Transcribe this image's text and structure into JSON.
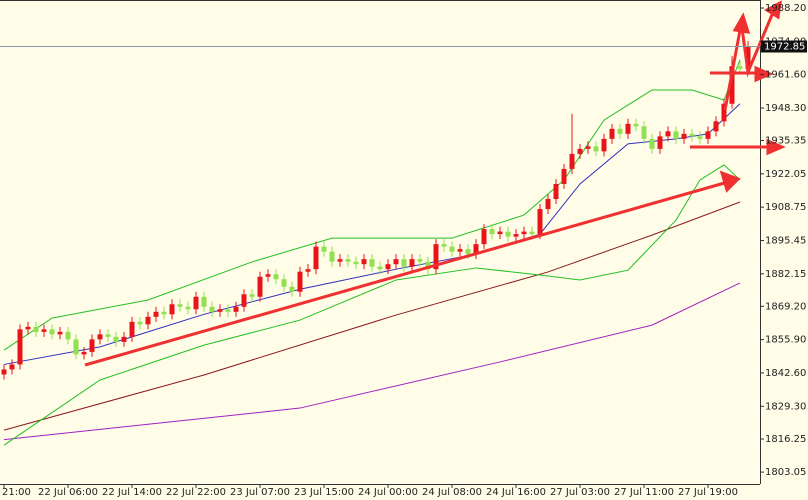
{
  "chart_data": {
    "type": "candlestick",
    "ylim": [
      1798.3,
      1991.4
    ],
    "yticks": [
      1803.05,
      1816.25,
      {
        "value": 1829.3,
        "label": "1829.30"
      },
      {
        "value": 1842.6,
        "label": "1842.60"
      },
      {
        "value": 1855.9,
        "label": "1855.90"
      },
      {
        "value": 1869.2,
        "label": "1869.20"
      },
      1882.15,
      1895.45,
      1908.75,
      1922.05,
      1935.35,
      {
        "value": 1948.3,
        "label": "1948.30"
      },
      {
        "value": 1961.6,
        "label": "1961.60"
      },
      {
        "value": 1974.9,
        "label": "1974.90"
      },
      {
        "value": 1988.2,
        "label": "1988.20"
      }
    ],
    "xticks": [
      {
        "value": 0,
        "label": "21:00"
      },
      {
        "value": 8,
        "label": "22 Jul 06:00"
      },
      {
        "value": 16,
        "label": "22 Jul 14:00"
      },
      {
        "value": 24,
        "label": "22 Jul 22:00"
      },
      {
        "value": 32,
        "label": "23 Jul 07:00"
      },
      {
        "value": 40,
        "label": "23 Jul 15:00"
      },
      {
        "value": 48,
        "label": "24 Jul 00:00"
      },
      {
        "value": 56,
        "label": "24 Jul 08:00"
      },
      {
        "value": 64,
        "label": "24 Jul 16:00"
      },
      {
        "value": 72,
        "label": "27 Jul 03:00"
      },
      {
        "value": 80,
        "label": "27 Jul 11:00"
      },
      {
        "value": 88,
        "label": "27 Jul 19:00"
      }
    ],
    "current_price": 1972.85,
    "up_color": "#e8141a",
    "down_color": "#90e050",
    "open": [
      1842,
      1844,
      1846,
      1860,
      1861,
      1859,
      1860,
      1858,
      1859,
      1856,
      1850,
      1851,
      1856,
      1858,
      1857,
      1855,
      1857,
      1863,
      1862,
      1865,
      1867,
      1866,
      1870,
      1869,
      1868,
      1873,
      1869,
      1867,
      1868,
      1867,
      1869,
      1874,
      1873,
      1881,
      1882,
      1880,
      1877,
      1875,
      1883,
      1884,
      1893,
      1891,
      1887,
      1888,
      1887,
      1886,
      1888,
      1885,
      1884,
      1886,
      1888,
      1885,
      1888,
      1887,
      1884,
      1894,
      1893,
      1891,
      1892,
      1890,
      1894,
      1900,
      1898,
      1899,
      1897,
      1898,
      1899,
      1898,
      1908,
      1912,
      1918,
      1924,
      1930,
      1932,
      1933,
      1931,
      1936,
      1940,
      1938,
      1942,
      1941,
      1936,
      1932,
      1937,
      1939,
      1936,
      1938,
      1937,
      1936,
      1939,
      1943,
      1950,
      1965,
      1964
    ],
    "high": [
      1846,
      1848,
      1862,
      1863,
      1863,
      1862,
      1862,
      1861,
      1861,
      1858,
      1853,
      1858,
      1860,
      1860,
      1859,
      1859,
      1865,
      1865,
      1867,
      1869,
      1869,
      1872,
      1872,
      1871,
      1875,
      1875,
      1871,
      1870,
      1870,
      1871,
      1876,
      1876,
      1883,
      1884,
      1884,
      1882,
      1879,
      1885,
      1886,
      1895,
      1895,
      1893,
      1890,
      1890,
      1889,
      1890,
      1890,
      1887,
      1888,
      1890,
      1890,
      1890,
      1890,
      1889,
      1896,
      1896,
      1895,
      1894,
      1894,
      1896,
      1902,
      1902,
      1901,
      1901,
      1900,
      1901,
      1901,
      1910,
      1914,
      1920,
      1926,
      1946,
      1934,
      1935,
      1935,
      1938,
      1942,
      1942,
      1944,
      1944,
      1943,
      1938,
      1939,
      1941,
      1941,
      1940,
      1940,
      1939,
      1941,
      1945,
      1952,
      1969,
      1967,
      1975
    ],
    "low": [
      1840,
      1842,
      1844,
      1858,
      1857,
      1857,
      1856,
      1856,
      1854,
      1848,
      1848,
      1849,
      1854,
      1855,
      1853,
      1853,
      1855,
      1860,
      1860,
      1863,
      1864,
      1864,
      1867,
      1866,
      1866,
      1867,
      1865,
      1865,
      1865,
      1865,
      1867,
      1871,
      1871,
      1879,
      1878,
      1875,
      1873,
      1873,
      1881,
      1882,
      1889,
      1885,
      1885,
      1885,
      1884,
      1884,
      1883,
      1882,
      1882,
      1884,
      1883,
      1883,
      1885,
      1882,
      1882,
      1891,
      1889,
      1889,
      1888,
      1888,
      1892,
      1896,
      1896,
      1895,
      1895,
      1896,
      1896,
      1896,
      1906,
      1910,
      1916,
      1922,
      1928,
      1930,
      1929,
      1929,
      1934,
      1936,
      1936,
      1939,
      1934,
      1930,
      1930,
      1935,
      1934,
      1934,
      1935,
      1934,
      1934,
      1937,
      1941,
      1948,
      1962,
      1962
    ],
    "close": [
      1844,
      1846,
      1860,
      1861,
      1859,
      1860,
      1858,
      1859,
      1856,
      1850,
      1851,
      1856,
      1858,
      1857,
      1855,
      1857,
      1863,
      1862,
      1865,
      1867,
      1866,
      1870,
      1869,
      1868,
      1873,
      1869,
      1867,
      1868,
      1867,
      1869,
      1874,
      1873,
      1881,
      1882,
      1880,
      1877,
      1875,
      1883,
      1884,
      1893,
      1891,
      1887,
      1888,
      1887,
      1886,
      1888,
      1885,
      1884,
      1886,
      1888,
      1885,
      1888,
      1887,
      1884,
      1894,
      1893,
      1891,
      1892,
      1890,
      1894,
      1900,
      1898,
      1899,
      1897,
      1898,
      1899,
      1898,
      1908,
      1912,
      1918,
      1924,
      1930,
      1932,
      1933,
      1931,
      1936,
      1940,
      1938,
      1942,
      1941,
      1936,
      1932,
      1937,
      1939,
      1936,
      1938,
      1937,
      1936,
      1939,
      1943,
      1950,
      1965,
      1964,
      1972.85
    ],
    "overlays": [
      {
        "color": "#a020c0",
        "x": [
          0,
          37,
          62,
          81,
          92
        ],
        "values": [
          1816,
          1828.6,
          1847,
          1861.7,
          1878.5
        ]
      },
      {
        "color": "#8b1a1a",
        "x": [
          0,
          25,
          49,
          68,
          81,
          92
        ],
        "values": [
          1819.8,
          1841.8,
          1865.7,
          1882.9,
          1897.6,
          1910.8
        ]
      },
      {
        "color": "#22c022",
        "x": [
          0,
          12,
          25,
          37,
          49,
          59,
          67,
          72,
          78,
          84,
          87,
          90,
          92
        ],
        "values": [
          1813.8,
          1839.8,
          1853.7,
          1863.7,
          1879.7,
          1884.5,
          1881.7,
          1879.7,
          1883.6,
          1903.6,
          1919.6,
          1925.6,
          1919.6
        ]
      },
      {
        "color": "#22c022",
        "x": [
          0,
          6,
          18,
          31,
          41,
          56,
          65,
          70,
          75,
          81,
          86,
          90,
          92
        ],
        "values": [
          1851.7,
          1864.5,
          1871.7,
          1886.9,
          1896.4,
          1896.4,
          1905.6,
          1919.6,
          1943.5,
          1955.5,
          1955.5,
          1951.5,
          1967.5
        ]
      },
      {
        "color": "#3030c0",
        "x": [
          0,
          12,
          25,
          37,
          49,
          59,
          67,
          72,
          78,
          84,
          88,
          92
        ],
        "values": [
          1846,
          1853,
          1866,
          1876,
          1884,
          1890,
          1898,
          1918,
          1934,
          1936,
          1938,
          1950
        ]
      }
    ]
  }
}
